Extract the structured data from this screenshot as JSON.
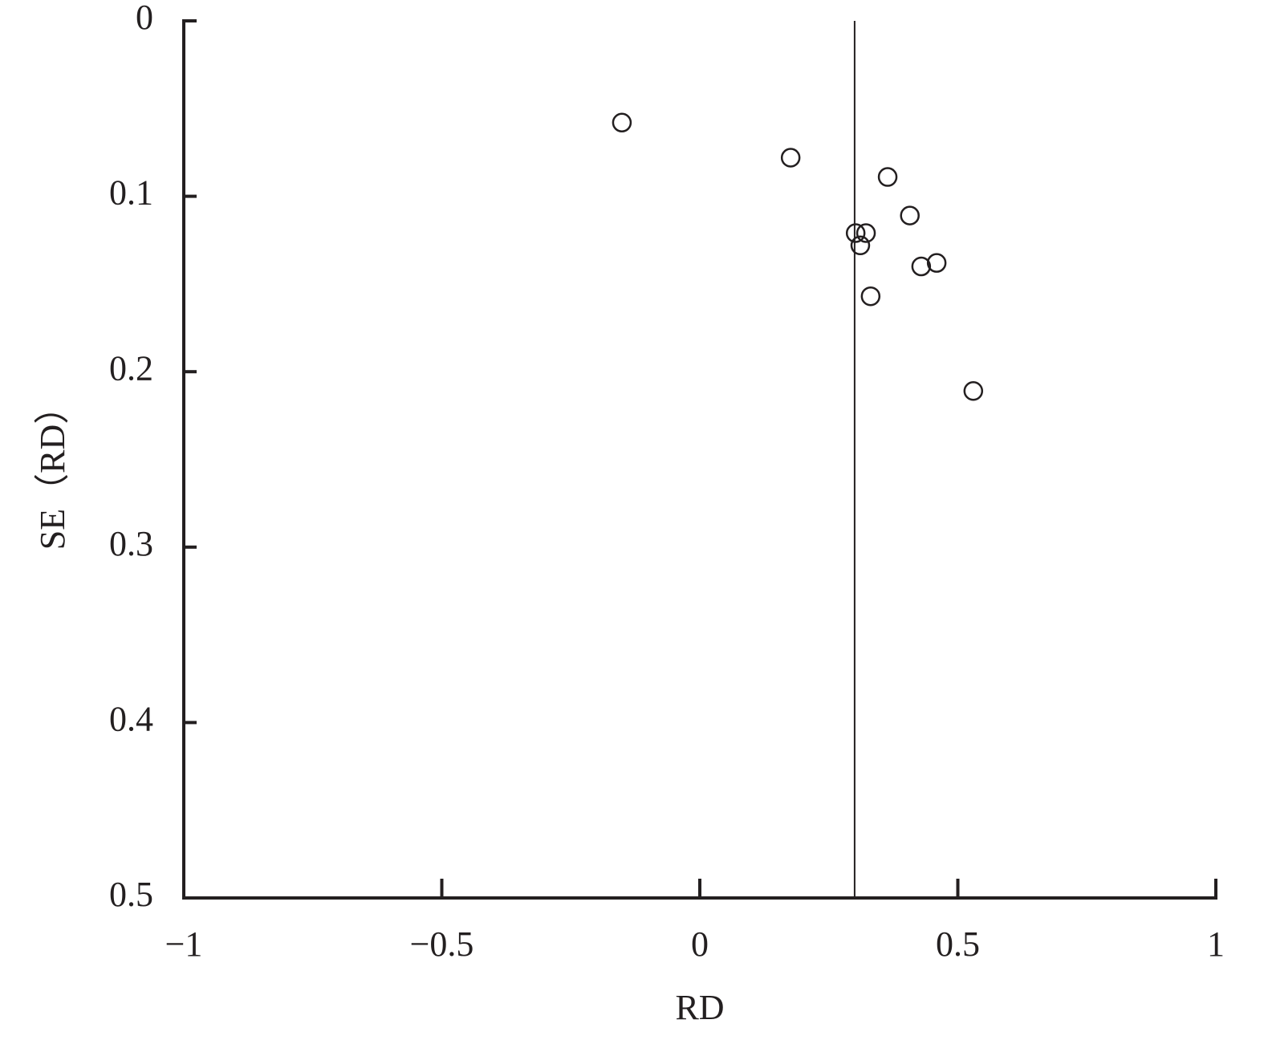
{
  "chart_data": {
    "type": "scatter",
    "x_label": "RD",
    "y_label": "SE（RD）",
    "x": [
      -0.151,
      0.176,
      0.364,
      0.407,
      0.302,
      0.322,
      0.311,
      0.429,
      0.459,
      0.331,
      0.53
    ],
    "values": [
      0.058,
      0.078,
      0.089,
      0.111,
      0.121,
      0.121,
      0.128,
      0.14,
      0.138,
      0.157,
      0.211
    ],
    "color": "#231f20",
    "xlim": [
      -1,
      1
    ],
    "xticks": [
      {
        "value": -1,
        "label": "−1"
      },
      {
        "value": -0.5,
        "label": "−0.5"
      },
      0,
      0.5,
      1
    ],
    "ylim": [
      0,
      0.5
    ],
    "yticks": [
      0,
      0.1,
      0.2,
      0.3,
      0.4,
      0.5
    ],
    "y_inverted": true,
    "vline": 0.3,
    "grid": false
  }
}
